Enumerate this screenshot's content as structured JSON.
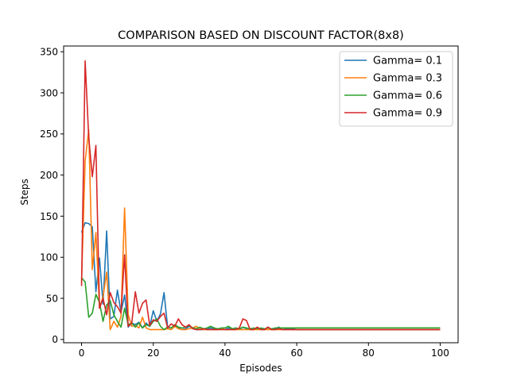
{
  "chart_data": {
    "type": "line",
    "title": "COMPARISON BASED ON DISCOUNT FACTOR(8x8)",
    "xlabel": "Episodes",
    "ylabel": "Steps",
    "xlim": [
      -5,
      105
    ],
    "ylim": [
      -4,
      357
    ],
    "xticks": [
      0,
      20,
      40,
      60,
      80,
      100
    ],
    "yticks": [
      0,
      50,
      100,
      150,
      200,
      250,
      300,
      350
    ],
    "grid": false,
    "legend_position": "top-right",
    "series": [
      {
        "name": "Gamma= 0.1",
        "color": "#1f77b4",
        "x": [
          0,
          1,
          2,
          3,
          4,
          5,
          6,
          7,
          8,
          9,
          10,
          11,
          12,
          13,
          14,
          15,
          16,
          17,
          18,
          19,
          20,
          21,
          22,
          23,
          24,
          25,
          26,
          27,
          28,
          29,
          30,
          31,
          32,
          33,
          34,
          35,
          36,
          37,
          38,
          39,
          40,
          41,
          42,
          43,
          44,
          45,
          46,
          47,
          48,
          49,
          50,
          51,
          52,
          53,
          54,
          55,
          56,
          57,
          58,
          59,
          60,
          100
        ],
        "values": [
          130,
          142,
          141,
          137,
          58,
          99,
          43,
          132,
          25,
          28,
          60,
          33,
          54,
          15,
          20,
          18,
          21,
          14,
          20,
          16,
          35,
          22,
          31,
          57,
          15,
          14,
          17,
          14,
          12,
          13,
          16,
          14,
          12,
          12,
          12,
          13,
          14,
          13,
          12,
          13,
          12,
          14,
          13,
          14,
          12,
          15,
          13,
          13,
          12,
          14,
          13,
          12,
          15,
          12,
          13,
          15,
          12,
          13,
          13,
          13,
          12,
          12
        ]
      },
      {
        "name": "Gamma= 0.3",
        "color": "#ff7f0e",
        "x": [
          0,
          1,
          2,
          3,
          4,
          5,
          6,
          7,
          8,
          9,
          10,
          11,
          12,
          13,
          14,
          15,
          16,
          17,
          18,
          19,
          20,
          21,
          22,
          23,
          24,
          25,
          26,
          27,
          28,
          29,
          30,
          31,
          32,
          33,
          34,
          35,
          36,
          37,
          38,
          39,
          40,
          41,
          42,
          43,
          44,
          45,
          46,
          47,
          48,
          49,
          50,
          51,
          52,
          53,
          54,
          55,
          56,
          57,
          58,
          59,
          60,
          100
        ],
        "values": [
          70,
          217,
          255,
          85,
          130,
          38,
          52,
          82,
          12,
          22,
          15,
          28,
          160,
          30,
          16,
          17,
          14,
          27,
          14,
          12,
          12,
          12,
          12,
          12,
          13,
          12,
          16,
          13,
          12,
          12,
          13,
          14,
          16,
          13,
          12,
          12,
          12,
          12,
          12,
          13,
          12,
          12,
          12,
          12,
          12,
          12,
          12,
          12,
          12,
          12,
          12,
          12,
          12,
          12,
          12,
          12,
          12,
          12,
          12,
          12,
          12,
          12
        ]
      },
      {
        "name": "Gamma= 0.6",
        "color": "#2ca02c",
        "x": [
          0,
          1,
          2,
          3,
          4,
          5,
          6,
          7,
          8,
          9,
          10,
          11,
          12,
          13,
          14,
          15,
          16,
          17,
          18,
          19,
          20,
          21,
          22,
          23,
          24,
          25,
          26,
          27,
          28,
          29,
          30,
          31,
          32,
          33,
          34,
          35,
          36,
          37,
          38,
          39,
          40,
          41,
          42,
          43,
          44,
          45,
          46,
          47,
          48,
          49,
          50,
          51,
          52,
          53,
          54,
          55,
          56,
          57,
          58,
          59,
          60,
          100
        ],
        "values": [
          75,
          70,
          27,
          32,
          55,
          45,
          22,
          42,
          47,
          30,
          22,
          15,
          38,
          18,
          20,
          15,
          20,
          14,
          18,
          16,
          22,
          25,
          16,
          12,
          15,
          14,
          18,
          15,
          14,
          15,
          17,
          14,
          13,
          15,
          13,
          14,
          16,
          14,
          13,
          14,
          14,
          16,
          13,
          14,
          13,
          15,
          14,
          13,
          14,
          13,
          14,
          13,
          14,
          13,
          14,
          14,
          14,
          14,
          14,
          14,
          14,
          14
        ]
      },
      {
        "name": "Gamma= 0.9",
        "color": "#d62728",
        "x": [
          0,
          1,
          2,
          3,
          4,
          5,
          6,
          7,
          8,
          9,
          10,
          11,
          12,
          13,
          14,
          15,
          16,
          17,
          18,
          19,
          20,
          21,
          22,
          23,
          24,
          25,
          26,
          27,
          28,
          29,
          30,
          31,
          32,
          33,
          34,
          35,
          36,
          37,
          38,
          39,
          40,
          41,
          42,
          43,
          44,
          45,
          46,
          47,
          48,
          49,
          50,
          51,
          52,
          53,
          54,
          55,
          56,
          57,
          58,
          59,
          60,
          100
        ],
        "values": [
          65,
          339,
          246,
          198,
          236,
          38,
          50,
          30,
          57,
          45,
          40,
          32,
          103,
          16,
          20,
          58,
          32,
          44,
          48,
          17,
          24,
          22,
          28,
          32,
          14,
          19,
          16,
          25,
          18,
          15,
          18,
          13,
          12,
          12,
          13,
          12,
          12,
          12,
          12,
          12,
          12,
          12,
          12,
          12,
          14,
          25,
          23,
          12,
          12,
          15,
          12,
          12,
          15,
          12,
          12,
          13,
          12,
          12,
          12,
          12,
          12,
          12
        ]
      }
    ]
  }
}
